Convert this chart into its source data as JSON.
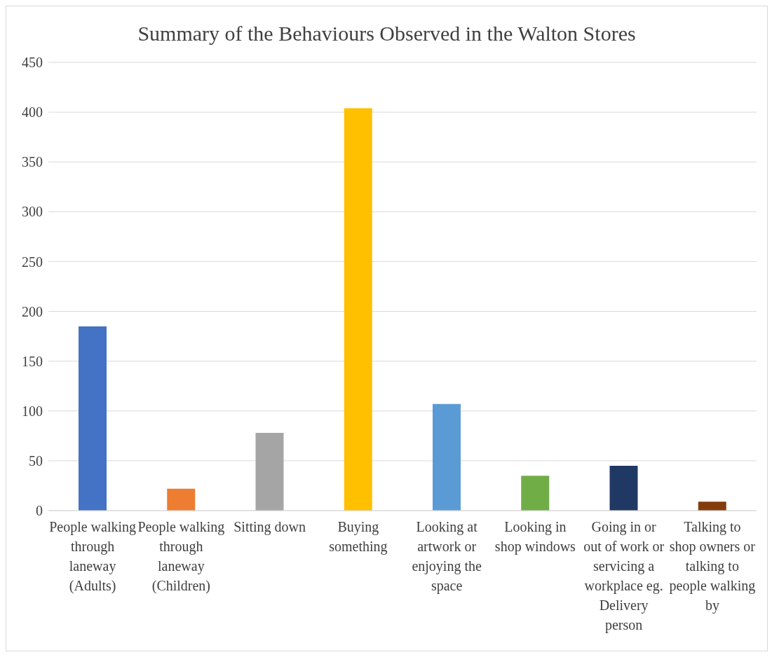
{
  "chart_data": {
    "type": "bar",
    "title": "Summary of the Behaviours Observed in the Walton Stores",
    "categories": [
      "People walking through laneway (Adults)",
      "People walking through laneway (Children)",
      "Sitting down",
      "Buying something",
      "Looking at artwork or enjoying the space",
      "Looking in shop windows",
      "Going in or out of work or servicing a workplace eg. Delivery person",
      "Talking to shop owners or talking to people walking by"
    ],
    "values": [
      185,
      22,
      78,
      404,
      107,
      35,
      45,
      9
    ],
    "colors": [
      "#4472c4",
      "#ed7d31",
      "#a5a5a5",
      "#ffc000",
      "#5b9bd5",
      "#70ad47",
      "#203864",
      "#843c0c"
    ],
    "ylim": [
      0,
      450
    ],
    "yticks": [
      0,
      50,
      100,
      150,
      200,
      250,
      300,
      350,
      400,
      450
    ],
    "grid": "y"
  }
}
